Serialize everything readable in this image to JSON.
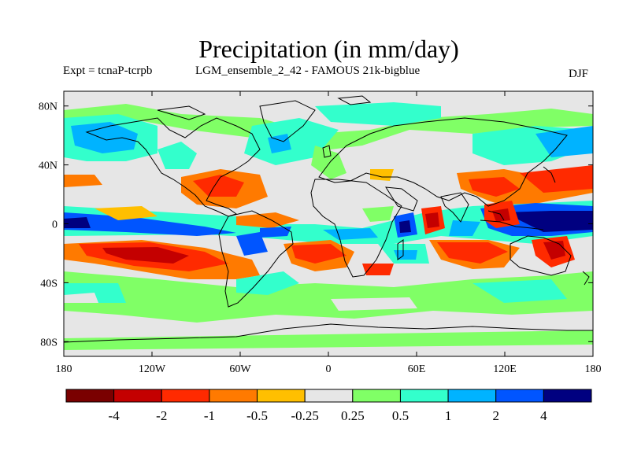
{
  "title": "Precipitation (in mm/day)",
  "subtitle_left": "Expt = tcnaP-tcrpb",
  "subtitle_center": "LGM_ensemble_2_42 - FAMOUS 21k-bigblue",
  "season": "DJF",
  "map": {
    "lon_range": [
      -180,
      180
    ],
    "lat_range": [
      -90,
      90
    ],
    "x_ticks": [
      "180",
      "120W",
      "60W",
      "0",
      "60E",
      "120E",
      "180"
    ],
    "y_ticks": [
      "80N",
      "40N",
      "0",
      "40S",
      "80S"
    ]
  },
  "colorbar": {
    "colors": [
      "#7a0000",
      "#c40000",
      "#ff2a00",
      "#ff7a00",
      "#ffbf00",
      "#e6e6e6",
      "#80ff66",
      "#33ffcc",
      "#00b3ff",
      "#0055ff",
      "#000080"
    ],
    "labels": [
      "-4",
      "-2",
      "-1",
      "-0.5",
      "-0.25",
      "0.25",
      "0.5",
      "1",
      "2",
      "4"
    ]
  }
}
